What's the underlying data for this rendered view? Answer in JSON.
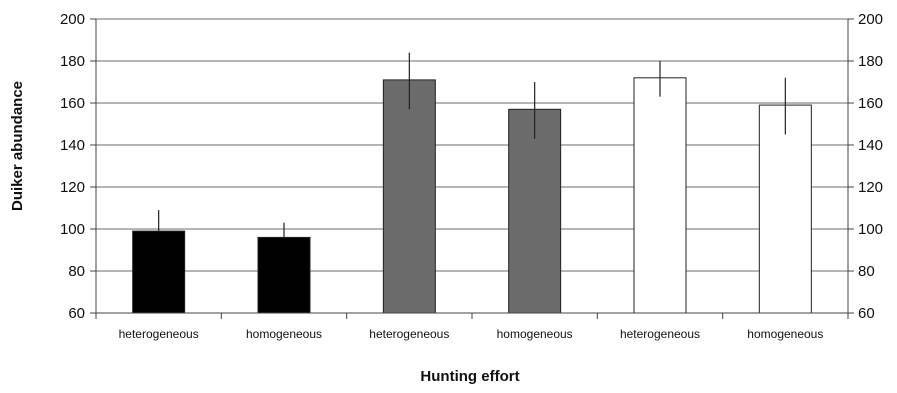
{
  "chart_data": {
    "type": "bar",
    "title": "",
    "xlabel": "Hunting effort",
    "ylabel": "Duiker abundance",
    "ylim": [
      60,
      200
    ],
    "yticks": [
      60,
      80,
      100,
      120,
      140,
      160,
      180,
      200
    ],
    "secondary_y_axis": true,
    "grid": true,
    "categories": [
      "heterogeneous",
      "homogeneous",
      "heterogeneous",
      "homogeneous",
      "heterogeneous",
      "homogeneous"
    ],
    "values": [
      99,
      96,
      171,
      157,
      172,
      159
    ],
    "error_upper": [
      109,
      103,
      184,
      170,
      180,
      172
    ],
    "error_lower": [
      99,
      96,
      157,
      143,
      163,
      145
    ],
    "colors": [
      "#000000",
      "#000000",
      "#6b6b6b",
      "#6b6b6b",
      "#ffffff",
      "#ffffff"
    ]
  }
}
